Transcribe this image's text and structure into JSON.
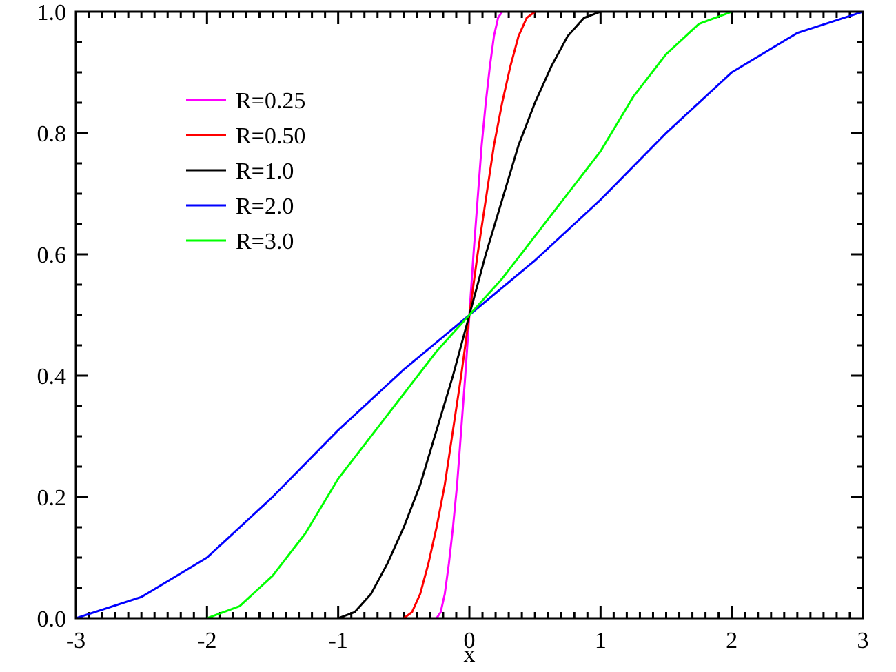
{
  "chart_data": {
    "type": "line",
    "x_label": "x",
    "xlim": [
      -3,
      3
    ],
    "xticks": [
      -3,
      -2,
      -1,
      0,
      1,
      2,
      3
    ],
    "ylim": [
      0,
      1
    ],
    "yticks": [
      {
        "value": 0,
        "label": "0.0"
      },
      0.2,
      0.4,
      0.6,
      0.8,
      {
        "value": 1,
        "label": "1.0"
      }
    ],
    "x_minor_divisions": 10,
    "y_minor_divisions": 4,
    "mirror_ticks": true,
    "legend": "upper left",
    "series": [
      {
        "name": "R=0.25",
        "color": "#ff00ff",
        "x": [
          -3,
          -0.25,
          -0.21875,
          -0.1875,
          -0.15625,
          -0.125,
          -0.09375,
          -0.0625,
          -0.03125,
          0,
          0.03125,
          0.0625,
          0.09375,
          0.125,
          0.15625,
          0.1875,
          0.21875,
          0.25,
          3
        ],
        "values": [
          0,
          0,
          0.01,
          0.04,
          0.09,
          0.15,
          0.22,
          0.31,
          0.4,
          0.5,
          0.6,
          0.69,
          0.78,
          0.85,
          0.91,
          0.96,
          0.99,
          1,
          1
        ]
      },
      {
        "name": "R=0.50",
        "color": "#ff0000",
        "x": [
          -3,
          -0.5,
          -0.4375,
          -0.375,
          -0.3125,
          -0.25,
          -0.1875,
          -0.125,
          -0.0625,
          0,
          0.0625,
          0.125,
          0.1875,
          0.25,
          0.3125,
          0.375,
          0.4375,
          0.5,
          3
        ],
        "values": [
          0,
          0,
          0.01,
          0.04,
          0.09,
          0.15,
          0.22,
          0.31,
          0.4,
          0.5,
          0.6,
          0.69,
          0.78,
          0.85,
          0.91,
          0.96,
          0.99,
          1,
          1
        ]
      },
      {
        "name": "R=1.0",
        "color": "#000000",
        "x": [
          -3,
          -1,
          -0.875,
          -0.75,
          -0.625,
          -0.5,
          -0.375,
          -0.25,
          -0.125,
          0,
          0.125,
          0.25,
          0.375,
          0.5,
          0.625,
          0.75,
          0.875,
          1,
          3
        ],
        "values": [
          0,
          0,
          0.01,
          0.04,
          0.09,
          0.15,
          0.22,
          0.31,
          0.4,
          0.5,
          0.6,
          0.69,
          0.78,
          0.85,
          0.91,
          0.96,
          0.99,
          1,
          1
        ]
      },
      {
        "name": "R=2.0",
        "color": "#0000ff",
        "x": [
          -3,
          -2.5,
          -2,
          -1.5,
          -1,
          -0.5,
          0,
          0.5,
          1,
          1.5,
          2,
          2.5,
          3
        ],
        "values": [
          0,
          0.035,
          0.1,
          0.2,
          0.31,
          0.41,
          0.5,
          0.59,
          0.69,
          0.8,
          0.9,
          0.965,
          1
        ]
      },
      {
        "name": "R=3.0",
        "color": "#00ff00",
        "x": [
          -3,
          -2,
          -1.75,
          -1.5,
          -1.25,
          -1,
          -0.75,
          -0.5,
          -0.25,
          0,
          0.25,
          0.5,
          0.75,
          1,
          1.25,
          1.5,
          1.75,
          2,
          3
        ],
        "values": [
          0,
          0,
          0.02,
          0.07,
          0.14,
          0.23,
          0.3,
          0.37,
          0.44,
          0.5,
          0.56,
          0.63,
          0.7,
          0.77,
          0.86,
          0.93,
          0.98,
          1,
          1
        ]
      }
    ]
  }
}
